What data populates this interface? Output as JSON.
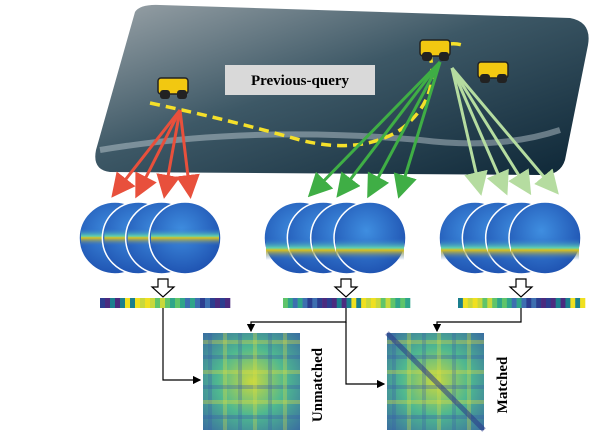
{
  "labels": {
    "previous_query": "Previous-query",
    "unmatched": "Unmatched",
    "matched": "Matched"
  }
}
